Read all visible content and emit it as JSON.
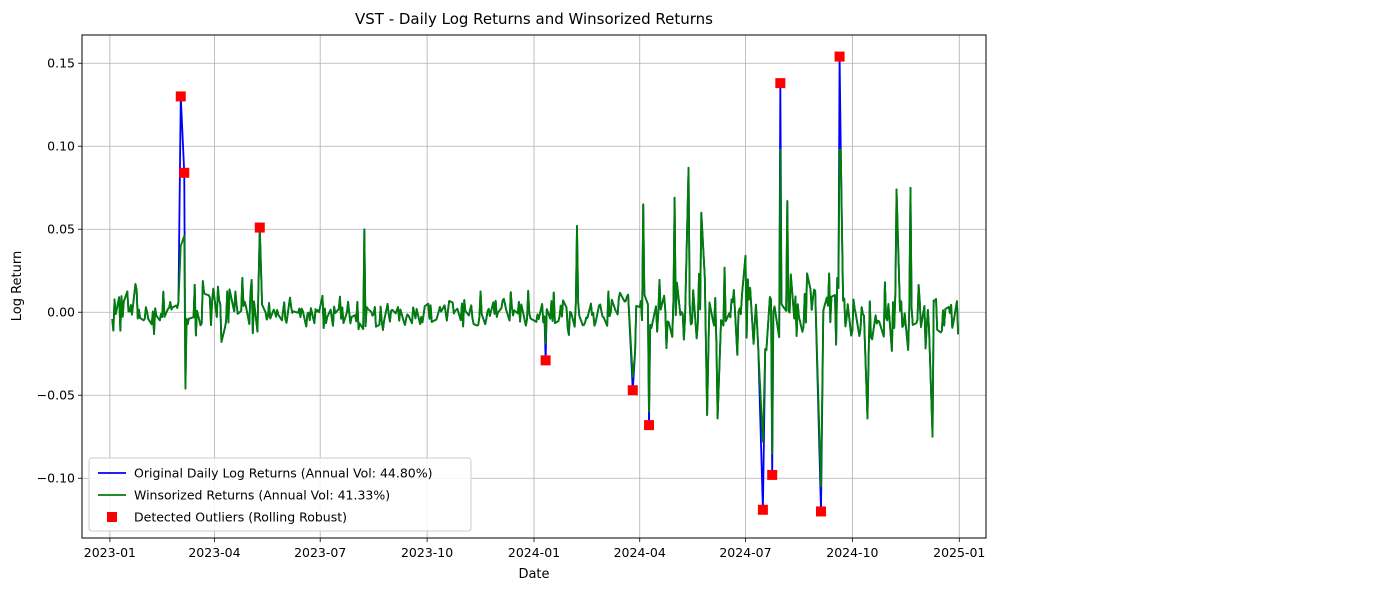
{
  "chart_data": {
    "type": "line",
    "title": "VST - Daily Log Returns and Winsorized Returns",
    "xlabel": "Date",
    "ylabel": "Log Return",
    "x_axis_type": "date",
    "xlim": [
      "2022-12-08",
      "2025-01-24"
    ],
    "ylim": [
      -0.136,
      0.167
    ],
    "grid": true,
    "legend_position": "lower-left",
    "x_ticks": [
      "2023-01",
      "2023-04",
      "2023-07",
      "2023-10",
      "2024-01",
      "2024-04",
      "2024-07",
      "2024-10",
      "2025-01"
    ],
    "y_ticks": [
      -0.1,
      -0.05,
      0.0,
      0.05,
      0.1,
      0.15
    ],
    "y_tick_labels": [
      "−0.10",
      "−0.05",
      "0.00",
      "0.05",
      "0.10",
      "0.15"
    ],
    "series": [
      {
        "name": "Original Daily Log Returns (Annual Vol: 44.80%)",
        "color": "#0000ff",
        "spikes": [
          {
            "date": "2023-03-03",
            "value": 0.13
          },
          {
            "date": "2023-03-06",
            "value": 0.084
          },
          {
            "date": "2023-05-10",
            "value": 0.051
          },
          {
            "date": "2024-01-11",
            "value": -0.029
          },
          {
            "date": "2024-03-26",
            "value": -0.047
          },
          {
            "date": "2024-04-09",
            "value": -0.068
          },
          {
            "date": "2024-07-16",
            "value": -0.119
          },
          {
            "date": "2024-07-24",
            "value": -0.098
          },
          {
            "date": "2024-07-31",
            "value": 0.138
          },
          {
            "date": "2024-09-04",
            "value": -0.12
          },
          {
            "date": "2024-09-20",
            "value": 0.154
          }
        ]
      },
      {
        "name": "Winsorized Returns (Annual Vol: 41.33%)",
        "color": "#008000",
        "segments": [
          {
            "start": "2023-01-03",
            "end": "2023-03-01",
            "amplitude": 0.016,
            "seed": 3
          },
          {
            "start": "2023-03-08",
            "end": "2023-05-08",
            "amplitude": 0.022,
            "seed": 7
          },
          {
            "start": "2023-05-12",
            "end": "2023-12-29",
            "amplitude": 0.013,
            "seed": 11
          },
          {
            "start": "2024-01-03",
            "end": "2024-03-22",
            "amplitude": 0.018,
            "seed": 17
          },
          {
            "start": "2024-03-28",
            "end": "2024-07-12",
            "amplitude": 0.032,
            "seed": 23
          },
          {
            "start": "2024-07-18",
            "end": "2024-08-30",
            "amplitude": 0.03,
            "seed": 29
          },
          {
            "start": "2024-09-06",
            "end": "2024-12-31",
            "amplitude": 0.03,
            "seed": 31
          }
        ],
        "peaks": [
          {
            "date": "2023-03-07",
            "value": -0.046
          },
          {
            "date": "2023-08-08",
            "value": 0.05
          },
          {
            "date": "2024-02-07",
            "value": 0.052
          },
          {
            "date": "2024-04-04",
            "value": 0.065
          },
          {
            "date": "2024-05-01",
            "value": 0.069
          },
          {
            "date": "2024-05-13",
            "value": 0.087
          },
          {
            "date": "2024-05-24",
            "value": 0.06
          },
          {
            "date": "2024-05-29",
            "value": -0.062
          },
          {
            "date": "2024-06-07",
            "value": -0.064
          },
          {
            "date": "2024-08-06",
            "value": 0.067
          },
          {
            "date": "2024-09-21",
            "value": 0.098
          },
          {
            "date": "2024-10-14",
            "value": -0.064
          },
          {
            "date": "2024-11-08",
            "value": 0.074
          },
          {
            "date": "2024-11-20",
            "value": 0.075
          },
          {
            "date": "2024-12-09",
            "value": -0.075
          }
        ],
        "clip_points": [
          {
            "date": "2023-03-03",
            "value": 0.04
          },
          {
            "date": "2023-03-06",
            "value": 0.046
          },
          {
            "date": "2023-05-10",
            "value": 0.049
          },
          {
            "date": "2024-01-11",
            "value": -0.019
          },
          {
            "date": "2024-03-26",
            "value": -0.039
          },
          {
            "date": "2024-04-09",
            "value": -0.06
          },
          {
            "date": "2024-07-16",
            "value": -0.078
          },
          {
            "date": "2024-07-24",
            "value": -0.085
          },
          {
            "date": "2024-07-31",
            "value": 0.098
          },
          {
            "date": "2024-09-04",
            "value": -0.105
          },
          {
            "date": "2024-09-20",
            "value": 0.098
          }
        ]
      },
      {
        "name": "Detected Outliers (Rolling Robust)",
        "type": "scatter",
        "color": "#ff0000",
        "marker": "square",
        "points": [
          {
            "date": "2023-03-03",
            "value": 0.13
          },
          {
            "date": "2023-03-06",
            "value": 0.084
          },
          {
            "date": "2023-05-10",
            "value": 0.051
          },
          {
            "date": "2024-01-11",
            "value": -0.029
          },
          {
            "date": "2024-03-26",
            "value": -0.047
          },
          {
            "date": "2024-04-09",
            "value": -0.068
          },
          {
            "date": "2024-07-16",
            "value": -0.119
          },
          {
            "date": "2024-07-24",
            "value": -0.098
          },
          {
            "date": "2024-07-31",
            "value": 0.138
          },
          {
            "date": "2024-09-04",
            "value": -0.12
          },
          {
            "date": "2024-09-20",
            "value": 0.154
          }
        ]
      }
    ]
  }
}
